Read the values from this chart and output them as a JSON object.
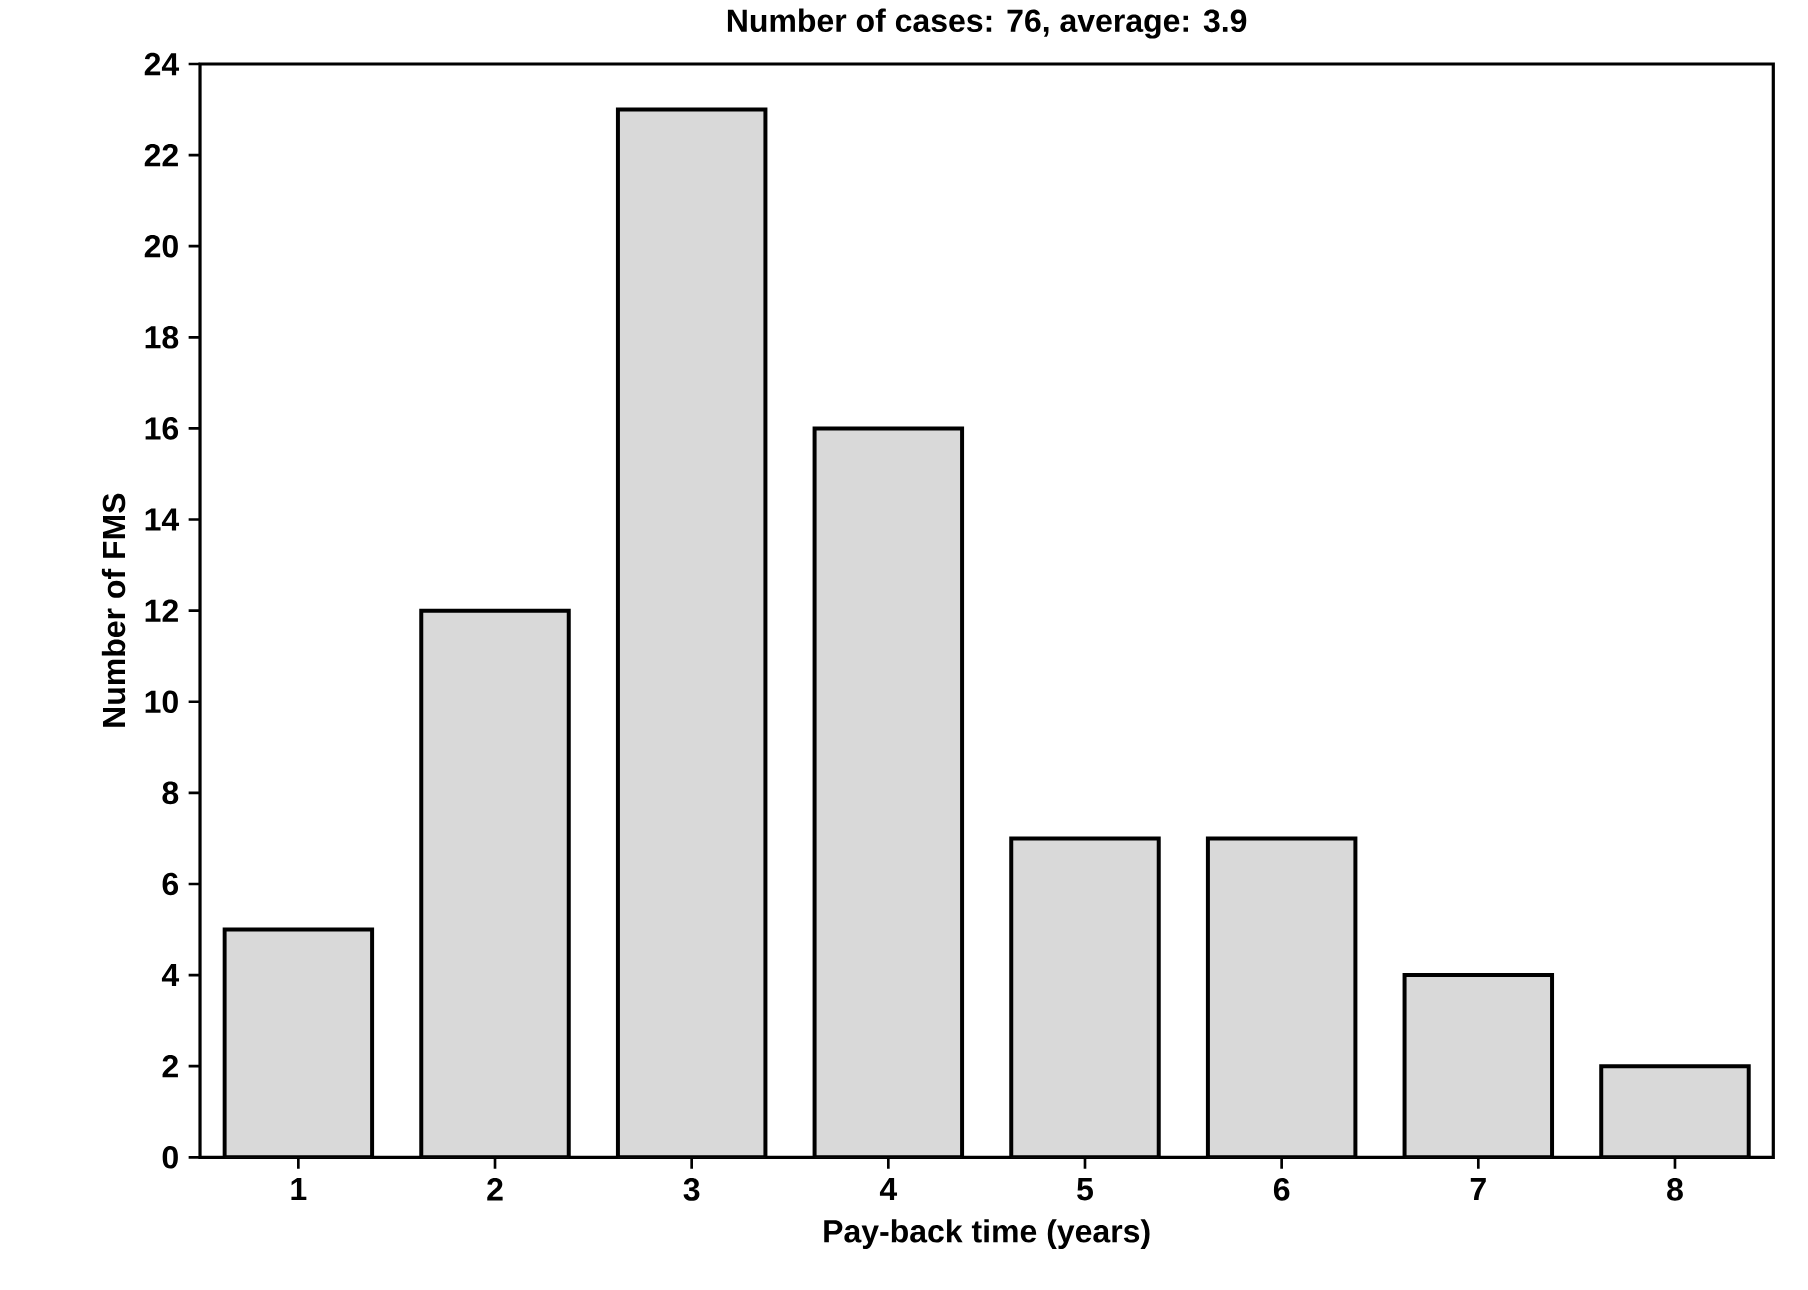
{
  "chart_data": {
    "type": "bar",
    "title": "Number of cases: 76, average: 3.9",
    "xlabel": "Pay-back time (years)",
    "ylabel": "Number of FMS",
    "categories": [
      "1",
      "2",
      "3",
      "4",
      "5",
      "6",
      "7",
      "8"
    ],
    "values": [
      5,
      12,
      23,
      16,
      7,
      7,
      4,
      2
    ],
    "color": "#d9d9d9",
    "ylim": [
      0,
      24
    ],
    "yticks": [
      0,
      2,
      4,
      6,
      8,
      10,
      12,
      14,
      16,
      18,
      20,
      22,
      24
    ],
    "grid": false
  }
}
